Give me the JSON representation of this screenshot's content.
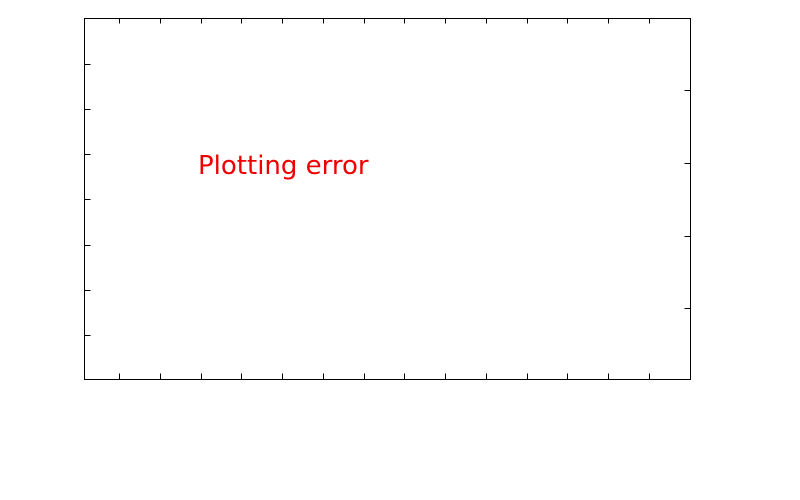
{
  "chart_data": {
    "type": "line",
    "title": "",
    "xlabel": "",
    "ylabel": "",
    "series": [],
    "grid": false,
    "legend": "none",
    "message": "Plotting error",
    "message_color": "#ee0000",
    "axis_color": "#000000",
    "background": "#ffffff"
  }
}
